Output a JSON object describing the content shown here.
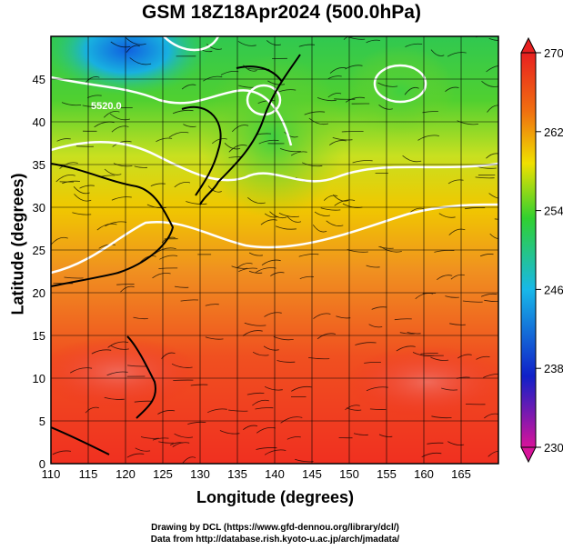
{
  "title": "GSM 18Z18Apr2024 (500.0hPa)",
  "xlabel": "Longitude (degrees)",
  "ylabel": "Latitude  (degrees)",
  "credit_line1": "Drawing by DCL (https://www.gfd-dennou.org/library/dcl/)",
  "credit_line2": "Data from http://database.rish.kyoto-u.ac.jp/arch/jmadata/",
  "contour_label": "5520.0",
  "chart_data": {
    "type": "heatmap",
    "title": "GSM 18Z18Apr2024 (500.0hPa)",
    "xlabel": "Longitude (degrees)",
    "ylabel": "Latitude  (degrees)",
    "xlim": [
      110,
      170
    ],
    "ylim": [
      0,
      50
    ],
    "x_ticks": [
      110,
      115,
      120,
      125,
      130,
      135,
      140,
      145,
      150,
      155,
      160,
      165
    ],
    "y_ticks": [
      0,
      5,
      10,
      15,
      20,
      25,
      30,
      35,
      40,
      45
    ],
    "grid": true,
    "colorbar": {
      "min": 230,
      "max": 270,
      "ticks": [
        230,
        238,
        246,
        254,
        262,
        270
      ],
      "colors": [
        "#d8149a",
        "#1020c8",
        "#18b8e8",
        "#30d030",
        "#f0e000",
        "#f07010",
        "#e82020"
      ]
    },
    "contour_values": [
      "5520.0"
    ]
  }
}
